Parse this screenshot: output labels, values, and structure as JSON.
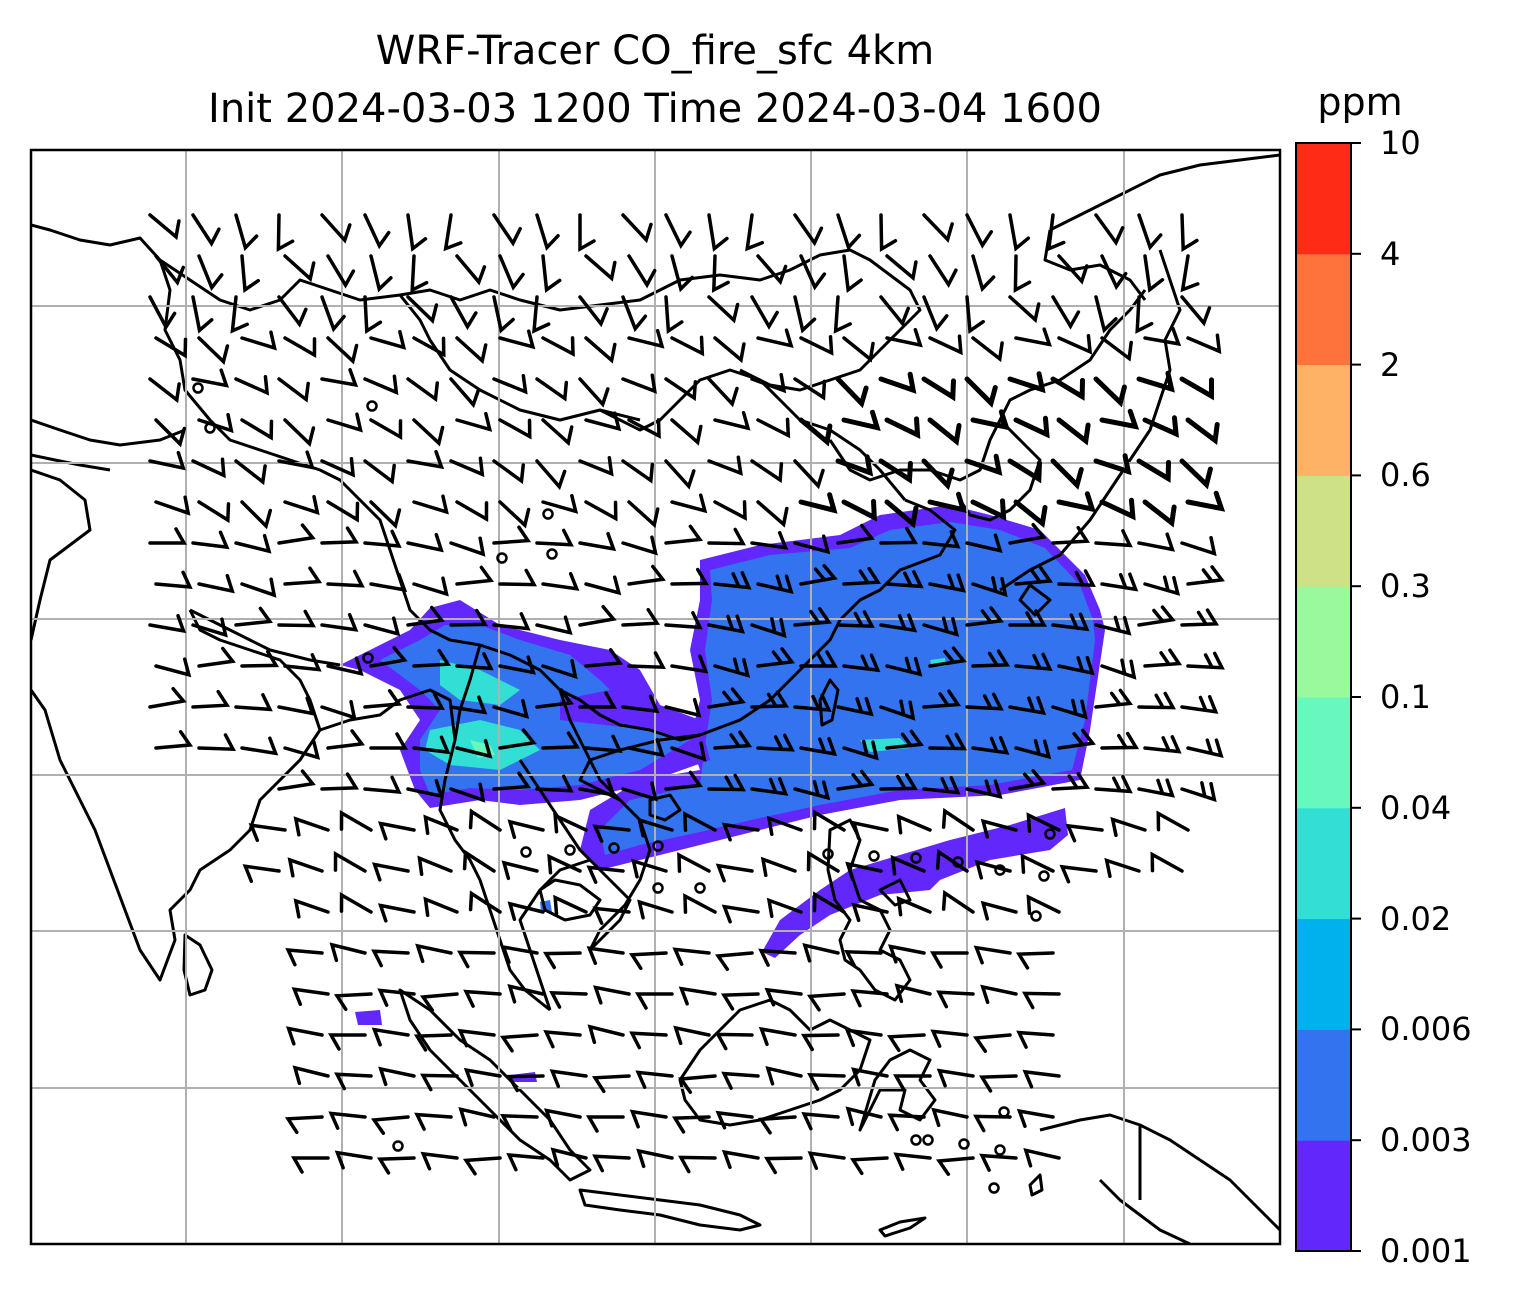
{
  "title": {
    "line1": "WRF-Tracer CO_fire_sfc 4km",
    "line2": "Init 2024-03-03 1200 Time 2024-03-04 1600"
  },
  "colorbar": {
    "unit": "ppm",
    "ticks": [
      "0.001",
      "0.003",
      "0.006",
      "0.02",
      "0.04",
      "0.1",
      "0.3",
      "0.6",
      "2",
      "4",
      "10"
    ],
    "colors": [
      "#6228fb",
      "#3373f0",
      "#01b1ed",
      "#31dfd4",
      "#66f8bd",
      "#98fa9c",
      "#cfe187",
      "#feb266",
      "#fd733b",
      "#fe2c16"
    ]
  },
  "map": {
    "variable": "CO_fire_sfc",
    "grid_lines": true,
    "wind_barbs": true,
    "plume_colors": {
      "primary": "#3373f0",
      "edge": "#6228fb",
      "core": "#31dfd4",
      "peak": "#66f8bd"
    }
  }
}
